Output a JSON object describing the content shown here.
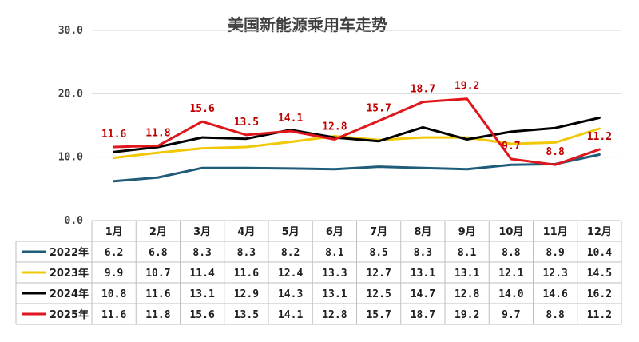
{
  "chart_data": {
    "type": "line",
    "title": "美国新能源乘用车走势",
    "ylim": [
      0,
      30
    ],
    "yticks": [
      "0.0",
      "10.0",
      "20.0",
      "30.0"
    ],
    "grid": true,
    "legend_placement": "left of data table",
    "categories": [
      "1月",
      "2月",
      "3月",
      "4月",
      "5月",
      "6月",
      "7月",
      "8月",
      "9月",
      "10月",
      "11月",
      "12月"
    ],
    "series": [
      {
        "name": "2022年",
        "color": "#1f5c7a",
        "values": [
          6.2,
          6.8,
          8.3,
          8.3,
          8.2,
          8.1,
          8.5,
          8.3,
          8.1,
          8.8,
          8.9,
          10.4
        ],
        "labels": [
          "6.2",
          "6.8",
          "8.3",
          "8.3",
          "8.2",
          "8.1",
          "8.5",
          "8.3",
          "8.1",
          "8.8",
          "8.9",
          "10.4"
        ]
      },
      {
        "name": "2023年",
        "color": "#f0c808",
        "values": [
          9.9,
          10.7,
          11.4,
          11.6,
          12.4,
          13.3,
          12.7,
          13.1,
          13.1,
          12.1,
          12.3,
          14.5
        ],
        "labels": [
          "9.9",
          "10.7",
          "11.4",
          "11.6",
          "12.4",
          "13.3",
          "12.7",
          "13.1",
          "13.1",
          "12.1",
          "12.3",
          "14.5"
        ]
      },
      {
        "name": "2024年",
        "color": "#000000",
        "values": [
          10.8,
          11.6,
          13.1,
          12.9,
          14.3,
          13.1,
          12.5,
          14.7,
          12.8,
          14.0,
          14.6,
          16.2
        ],
        "labels": [
          "10.8",
          "11.6",
          "13.1",
          "12.9",
          "14.3",
          "13.1",
          "12.5",
          "14.7",
          "12.8",
          "14.0",
          "14.6",
          "16.2"
        ]
      },
      {
        "name": "2025年",
        "color": "#e0161c",
        "values": [
          11.6,
          11.8,
          15.6,
          13.5,
          14.1,
          12.8,
          15.7,
          18.7,
          19.2,
          9.7,
          8.8,
          11.2
        ],
        "labels": [
          "11.6",
          "11.8",
          "15.6",
          "13.5",
          "14.1",
          "12.8",
          "15.7",
          "18.7",
          "19.2",
          "9.7",
          "8.8",
          "11.2"
        ]
      }
    ],
    "data_labels_series": "2025年"
  }
}
